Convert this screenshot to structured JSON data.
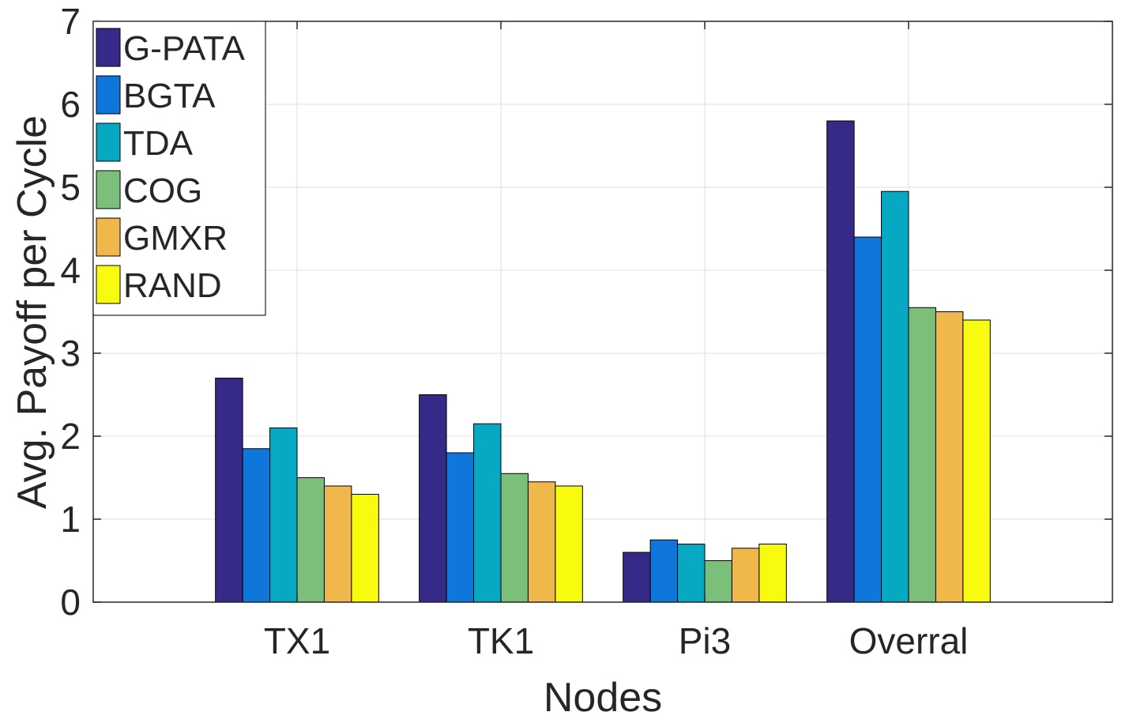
{
  "chart_data": {
    "type": "bar",
    "title": "",
    "xlabel": "Nodes",
    "ylabel": "Avg. Payoff per Cycle",
    "ylim": [
      0,
      7
    ],
    "yticks": [
      "0",
      "1",
      "2",
      "3",
      "4",
      "5",
      "6",
      "7"
    ],
    "grid": true,
    "legend_position": "top-left",
    "categories": [
      "TX1",
      "TK1",
      "Pi3",
      "Overral"
    ],
    "series": [
      {
        "name": "G-PATA",
        "color": "#352A87",
        "values": [
          2.7,
          2.5,
          0.6,
          5.8
        ]
      },
      {
        "name": "BGTA",
        "color": "#0F77DB",
        "values": [
          1.85,
          1.8,
          0.75,
          4.4
        ]
      },
      {
        "name": "TDA",
        "color": "#07A9C2",
        "values": [
          2.1,
          2.15,
          0.7,
          4.95
        ]
      },
      {
        "name": "COG",
        "color": "#7CBF7B",
        "values": [
          1.5,
          1.55,
          0.5,
          3.55
        ]
      },
      {
        "name": "GMXR",
        "color": "#F0B84A",
        "values": [
          1.4,
          1.45,
          0.65,
          3.5
        ]
      },
      {
        "name": "RAND",
        "color": "#F9FB0E",
        "values": [
          1.3,
          1.4,
          0.7,
          3.4
        ]
      }
    ]
  }
}
